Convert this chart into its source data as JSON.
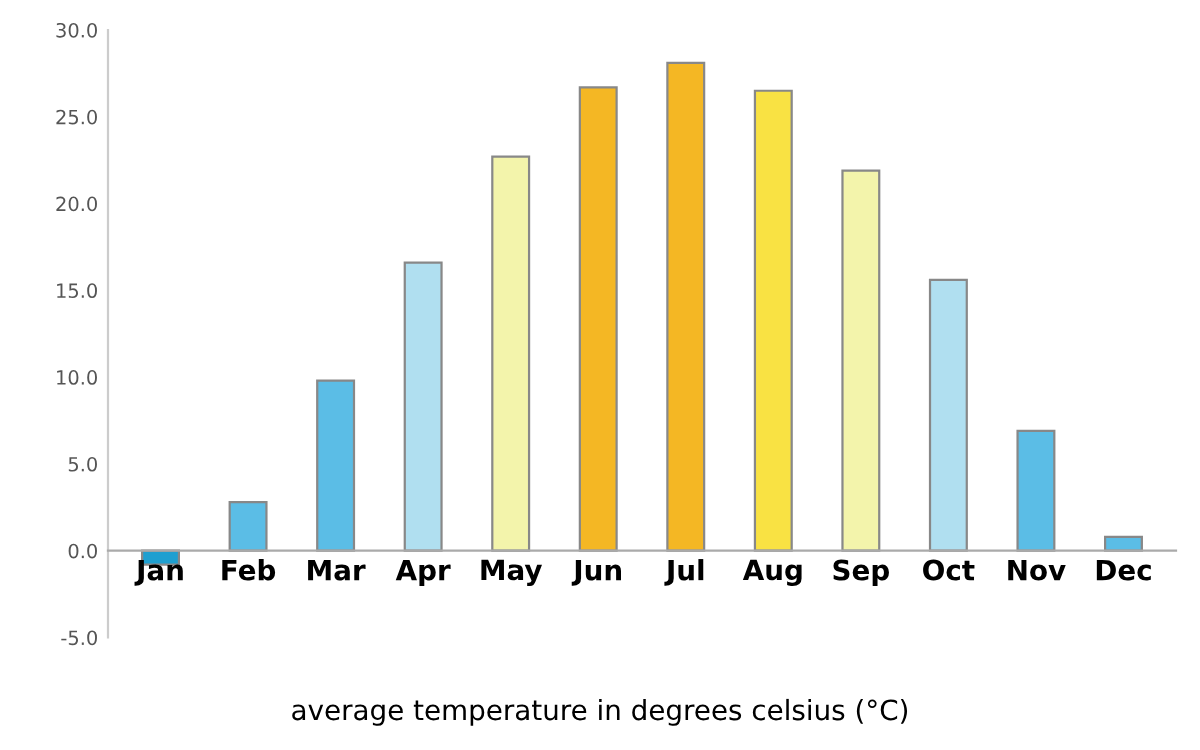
{
  "chart_data": {
    "type": "bar",
    "xlabel": "average temperature in degrees celsius (°C)",
    "categories": [
      "Jan",
      "Feb",
      "Mar",
      "Apr",
      "May",
      "Jun",
      "Jul",
      "Aug",
      "Sep",
      "Oct",
      "Nov",
      "Dec"
    ],
    "values": [
      -0.8,
      2.8,
      9.8,
      16.6,
      22.7,
      26.7,
      28.1,
      26.5,
      21.9,
      15.6,
      6.9,
      0.8
    ],
    "colors": [
      "#1e9fd0",
      "#5bbde6",
      "#5bbde6",
      "#b0dff0",
      "#f3f4ab",
      "#f4b724",
      "#f4b724",
      "#f9e243",
      "#f3f4ab",
      "#b0dff0",
      "#5bbde6",
      "#5bbde6"
    ],
    "ylim": [
      -5,
      30
    ],
    "yticks": [
      {
        "value": -5,
        "label": "-5.0"
      },
      {
        "value": 0,
        "label": "0.0"
      },
      {
        "value": 5,
        "label": "5.0"
      },
      {
        "value": 10,
        "label": "10.0"
      },
      {
        "value": 15,
        "label": "15.0"
      },
      {
        "value": 20,
        "label": "20.0"
      },
      {
        "value": 25,
        "label": "25.0"
      },
      {
        "value": 30,
        "label": "30.0"
      }
    ],
    "grid": false,
    "legend": false
  }
}
